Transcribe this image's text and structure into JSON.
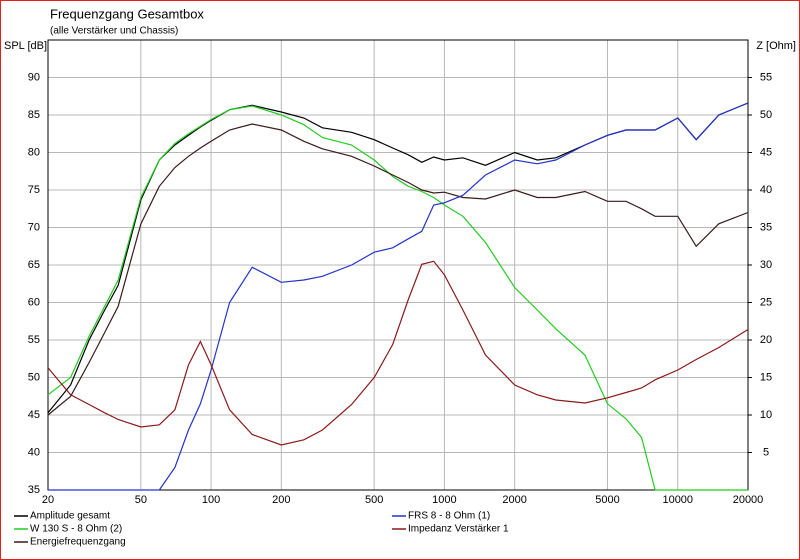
{
  "chart_data": {
    "type": "line",
    "title": "Frequenzgang Gesamtbox",
    "subtitle": "(alle Verstärker und Chassis)",
    "y_label": "SPL [dB]",
    "y2_label": "Z [Ohm]",
    "x_scale": "log",
    "grid": true,
    "x": [
      20,
      25,
      30,
      35,
      40,
      50,
      60,
      70,
      80,
      90,
      100,
      120,
      150,
      200,
      250,
      300,
      400,
      500,
      600,
      700,
      800,
      900,
      1000,
      1200,
      1500,
      2000,
      2500,
      3000,
      4000,
      5000,
      6000,
      7000,
      8000,
      10000,
      12000,
      15000,
      20000
    ],
    "xlim": [
      20,
      20000
    ],
    "xticks": [
      20,
      50,
      100,
      200,
      500,
      1000,
      2000,
      5000,
      10000,
      20000
    ],
    "ylim": [
      35,
      95
    ],
    "yticks": [
      35,
      40,
      45,
      50,
      55,
      60,
      65,
      70,
      75,
      80,
      85,
      90
    ],
    "y2lim": [
      0,
      60
    ],
    "y2ticks": [
      5,
      10,
      15,
      20,
      25,
      30,
      35,
      40,
      45,
      50,
      55
    ],
    "series": [
      {
        "name": "Amplitude gesamt",
        "color": "#000000",
        "values": [
          45.3,
          49,
          55,
          59,
          62.3,
          73.7,
          79,
          81,
          82.3,
          83.4,
          84.3,
          85.7,
          86.3,
          85.4,
          84.6,
          83.3,
          82.7,
          81.7,
          80.6,
          79.7,
          78.7,
          79.4,
          79,
          79.3,
          78.3,
          80,
          79,
          79.3,
          81,
          82.3,
          83,
          83,
          83,
          84.6,
          81.7,
          85,
          86.6
        ]
      },
      {
        "name": "W 130 S - 8 Ohm (2)",
        "color": "#22cc22",
        "values": [
          47.7,
          50,
          55.5,
          59.5,
          63,
          74,
          79,
          81.2,
          82.5,
          83.5,
          84.4,
          85.7,
          86.2,
          85,
          83.7,
          82,
          81,
          79,
          76.8,
          75.5,
          74.8,
          74,
          73,
          71.5,
          68,
          62,
          59,
          56.5,
          53,
          46.5,
          44.5,
          42,
          35,
          35,
          35,
          35,
          35
        ]
      },
      {
        "name": "Energiefrequenzgang",
        "color": "#3a1a1a",
        "values": [
          45,
          47.5,
          52,
          56,
          59.5,
          70.5,
          75.5,
          78,
          79.5,
          80.6,
          81.5,
          83,
          83.8,
          83,
          81.5,
          80.5,
          79.5,
          78.2,
          77,
          76,
          75,
          74.6,
          74.7,
          74,
          73.8,
          75,
          74,
          74,
          74.8,
          73.5,
          73.5,
          72.5,
          71.5,
          71.5,
          67.5,
          70.5,
          72
        ]
      },
      {
        "name": "FRS 8 - 8 Ohm (1)",
        "color": "#2233cc",
        "values": [
          35,
          35,
          35,
          35,
          35,
          35,
          35,
          38,
          43,
          46.5,
          51,
          60,
          64.7,
          62.7,
          63,
          63.5,
          65,
          66.7,
          67.3,
          68.5,
          69.5,
          73,
          73.3,
          74.3,
          77,
          79,
          78.5,
          79,
          81,
          82.3,
          83,
          83,
          83,
          84.6,
          81.7,
          85,
          86.6
        ]
      },
      {
        "name": "Impedanz Verstärker 1",
        "color": "#8b1a1a",
        "axis": "y2",
        "values": [
          16.3,
          12.7,
          11.4,
          10.3,
          9.4,
          8.4,
          8.7,
          10.7,
          16.7,
          19.8,
          16.7,
          10.7,
          7.4,
          6,
          6.7,
          8,
          11.4,
          15,
          19.4,
          25.4,
          30.1,
          30.5,
          28.7,
          24,
          18,
          14,
          12.7,
          12,
          11.6,
          12.3,
          13,
          13.6,
          14.7,
          16,
          17.4,
          19,
          21.4
        ]
      }
    ]
  }
}
